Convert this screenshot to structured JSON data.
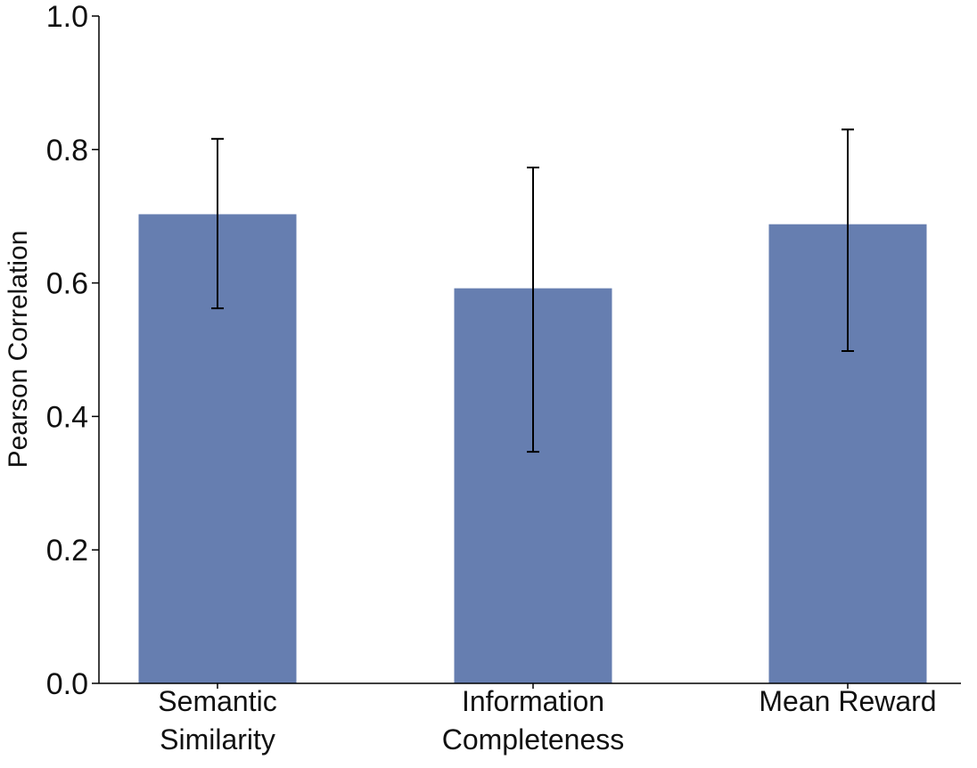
{
  "chart_data": {
    "type": "bar",
    "categories": [
      [
        "Semantic",
        "Similarity"
      ],
      [
        "Information",
        "Completeness"
      ],
      [
        "Mean Reward"
      ]
    ],
    "values": [
      0.703,
      0.592,
      0.688
    ],
    "error_low": [
      0.562,
      0.347,
      0.498
    ],
    "error_high": [
      0.816,
      0.773,
      0.83
    ],
    "ylabel": "Pearson Correlation",
    "xlabel": "",
    "ylim": [
      0.0,
      1.0
    ],
    "yticks": [
      "0.0",
      "0.2",
      "0.4",
      "0.6",
      "0.8",
      "1.0"
    ],
    "bar_color": "#667eb0",
    "error_color": "#000000",
    "grid": false,
    "legend": "none"
  }
}
